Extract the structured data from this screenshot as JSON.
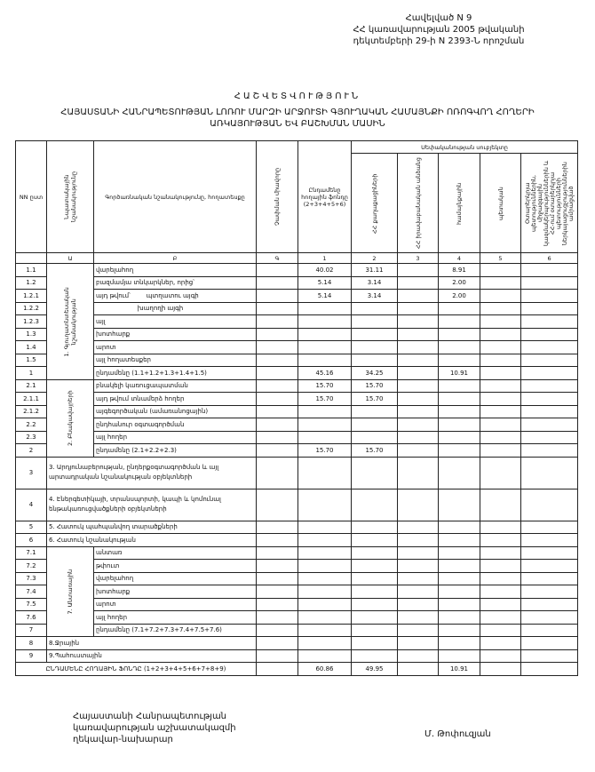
{
  "header": {
    "line1": "Հավելված N 9",
    "line2": "ՀՀ կառավարության 2005 թվականի",
    "line3": "դեկտեմբերի 29-ի N 2393-Ն որոշման"
  },
  "title": "ՀԱՇՎԵՏՎՈՒԹՅՈՒՆ",
  "subtitle": "ՀԱՅԱՍՏԱՆԻ ՀԱՆՐԱՊԵՏՈՒԹՅԱՆ ԼՈՌՈՒ ՄԱՐԶԻ ԱՐՋՈՒՏԻ ԳՅՈՒՂԱԿԱՆ ՀԱՄԱՅՆՔԻ ՈՌՈԳՎՈՂ ՀՈՂԵՐԻ ԱՌԿԱՅՈՒԹՅԱՆ ԵՎ ԲԱՇԽՄԱՆ ՄԱՍԻՆ",
  "table": {
    "headers": {
      "nn": "NN ըստ",
      "purpose": "Նպատակային նշանակությունը",
      "function": "Գործառնական նշանակությունը, հողատեսքը",
      "unit": "Չափման միավորը",
      "total": "Ընդամենը հողային ֆոնդը (2+3+4+5+6)",
      "ownership": "Սեփականության սուբյեկտը",
      "citizens": "ՀՀ քաղաքացիների",
      "legal": "ՀՀ իրավաբանական անձանց",
      "community": "համայնքային",
      "state": "պետական",
      "foreign": "Օտարերկրյա պետություններին, միջազգային կազմակերպություններին և ՀՀ-ում օտարերկրյա պետությունների ներկայացուցչություններին ամրացված"
    },
    "letters": [
      "",
      "Ա",
      "Բ",
      "Գ",
      "1",
      "2",
      "3",
      "4",
      "5",
      "6"
    ],
    "sections": [
      {
        "label": "1. Գյուղատնտեսական նշանակության",
        "rows": [
          {
            "num": "1.1",
            "name": "վարելահող",
            "values": [
              "",
              "40.02",
              "31.11",
              "",
              "8.91",
              "",
              ""
            ]
          },
          {
            "num": "1.2",
            "name": "բազմամյա տնկարկներ, որից՝",
            "values": [
              "",
              "5.14",
              "3.14",
              "",
              "2.00",
              "",
              ""
            ]
          },
          {
            "num": "1.2.1",
            "name": "այդ թվում՝        պտղատու այգի",
            "values": [
              "",
              "5.14",
              "3.14",
              "",
              "2.00",
              "",
              ""
            ]
          },
          {
            "num": "1.2.2",
            "name": "                     խաղողի այգի",
            "values": [
              "",
              "",
              "",
              "",
              "",
              "",
              ""
            ]
          },
          {
            "num": "1.2.3",
            "name": "այլ",
            "values": [
              "",
              "",
              "",
              "",
              "",
              "",
              ""
            ]
          },
          {
            "num": "1.3",
            "name": "խոտհարք",
            "values": [
              "",
              "",
              "",
              "",
              "",
              "",
              ""
            ]
          },
          {
            "num": "1.4",
            "name": "արոտ",
            "values": [
              "",
              "",
              "",
              "",
              "",
              "",
              ""
            ]
          },
          {
            "num": "1.5",
            "name": "այլ հողատեսքեր",
            "values": [
              "",
              "",
              "",
              "",
              "",
              "",
              ""
            ]
          },
          {
            "num": "1",
            "name": "ընդամենը (1.1+1.2+1.3+1.4+1.5)",
            "values": [
              "",
              "45.16",
              "34.25",
              "",
              "10.91",
              "",
              ""
            ]
          }
        ]
      },
      {
        "label": "2. Բնակավայրերի",
        "rows": [
          {
            "num": "2.1",
            "name": "բնակելի կառուցապատման",
            "values": [
              "",
              "15.70",
              "15.70",
              "",
              "",
              "",
              ""
            ]
          },
          {
            "num": "2.1.1",
            "name": "այդ թվում տնամերձ հողեր",
            "values": [
              "",
              "15.70",
              "15.70",
              "",
              "",
              "",
              ""
            ]
          },
          {
            "num": "2.1.2",
            "name": "այգեգործական (ամառանոցային)",
            "values": [
              "",
              "",
              "",
              "",
              "",
              "",
              ""
            ]
          },
          {
            "num": "2.2",
            "name": "ընդհանուր օգտագործման",
            "values": [
              "",
              "",
              "",
              "",
              "",
              "",
              ""
            ]
          },
          {
            "num": "2.3",
            "name": "այլ հողեր",
            "values": [
              "",
              "",
              "",
              "",
              "",
              "",
              ""
            ]
          },
          {
            "num": "2",
            "name": "ընդամենը (2.1+2.2+2.3)",
            "values": [
              "",
              "15.70",
              "15.70",
              "",
              "",
              "",
              ""
            ]
          }
        ]
      },
      {
        "single": true,
        "tall": true,
        "num": "3",
        "name": "3. Արդյունաբերության, ընդերքօգտագործման և այլ արտադրական նշանակության օբյեկտների",
        "values": [
          "",
          "",
          "",
          "",
          "",
          "",
          ""
        ]
      },
      {
        "single": true,
        "tall": true,
        "num": "4",
        "name": "4. Էներգետիկայի, տրանսպորտի, կապի և կոմունալ ենթակառուցվածքների օբյեկտների",
        "values": [
          "",
          "",
          "",
          "",
          "",
          "",
          ""
        ]
      },
      {
        "single": true,
        "num": "5",
        "name": "5. Հատուկ պահպանվող տարածքների",
        "values": [
          "",
          "",
          "",
          "",
          "",
          "",
          ""
        ]
      },
      {
        "single": true,
        "num": "6",
        "name": "6. Հատուկ նշանակության",
        "values": [
          "",
          "",
          "",
          "",
          "",
          "",
          ""
        ]
      },
      {
        "label": "7. Անտառային",
        "rows": [
          {
            "num": "7.1",
            "name": "անտառ",
            "values": [
              "",
              "",
              "",
              "",
              "",
              "",
              ""
            ]
          },
          {
            "num": "7.2",
            "name": "թփուտ",
            "values": [
              "",
              "",
              "",
              "",
              "",
              "",
              ""
            ]
          },
          {
            "num": "7.3",
            "name": "վարելահող",
            "values": [
              "",
              "",
              "",
              "",
              "",
              "",
              ""
            ]
          },
          {
            "num": "7.4",
            "name": "խոտհարք",
            "values": [
              "",
              "",
              "",
              "",
              "",
              "",
              ""
            ]
          },
          {
            "num": "7.5",
            "name": "արոտ",
            "values": [
              "",
              "",
              "",
              "",
              "",
              "",
              ""
            ]
          },
          {
            "num": "7.6",
            "name": "այլ հողեր",
            "values": [
              "",
              "",
              "",
              "",
              "",
              "",
              ""
            ]
          },
          {
            "num": "7",
            "name": "ընդամենը (7.1+7.2+7.3+7.4+7.5+7.6)",
            "values": [
              "",
              "",
              "",
              "",
              "",
              "",
              ""
            ]
          }
        ]
      },
      {
        "single": true,
        "num": "8",
        "name": "8.Ջրային",
        "values": [
          "",
          "",
          "",
          "",
          "",
          "",
          ""
        ]
      },
      {
        "single": true,
        "num": "9",
        "name": "9.Պահուստային",
        "values": [
          "",
          "",
          "",
          "",
          "",
          "",
          ""
        ]
      }
    ],
    "total": {
      "name": "ԸՆԴԱՄԵՆԸ ՀՈՂԱՅԻՆ ՖՈՆԴԸ (1+2+3+4+5+6+7+8+9)",
      "values": [
        "",
        "60.86",
        "49.95",
        "",
        "10.91",
        "",
        ""
      ]
    }
  },
  "footer": {
    "line1": "Հայաստանի Հանրապետության",
    "line2": "կառավարության աշխատակազմի",
    "line3": "ղեկավար-նախարար",
    "signatory": "Մ. Թոփուզյան"
  }
}
